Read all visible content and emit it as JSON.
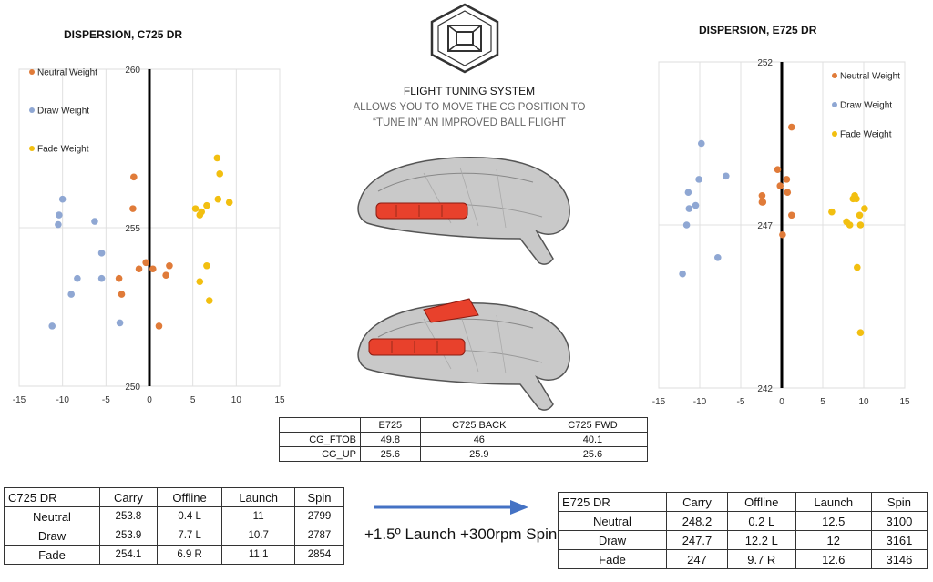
{
  "charts": {
    "left": {
      "title": "DISPERSION, C725 DR",
      "x_ticks": [
        -15,
        -10,
        -5,
        0,
        5,
        10,
        15
      ],
      "y_ticks": [
        260,
        255,
        250
      ],
      "legend": [
        "Neutral Weight",
        "Draw Weight",
        "Fade Weight"
      ]
    },
    "right": {
      "title": "DISPERSION, E725 DR",
      "x_ticks": [
        -15,
        -10,
        -5,
        0,
        5,
        10,
        15
      ],
      "y_ticks": [
        252,
        247,
        242
      ],
      "legend": [
        "Neutral Weight",
        "Draw Weight",
        "Fade Weight"
      ]
    }
  },
  "chart_data": [
    {
      "type": "scatter",
      "title": "DISPERSION, C725 DR",
      "xlim": [
        -15,
        15
      ],
      "ylim": [
        250,
        260
      ],
      "x_ticks": [
        -15,
        -10,
        -5,
        0,
        5,
        10,
        15
      ],
      "y_ticks": [
        250,
        255,
        260
      ],
      "grid": true,
      "legend_position": "top-left",
      "series": [
        {
          "name": "Neutral Weight",
          "color": "#E07B39",
          "x": [
            -1.8,
            -1.9,
            -0.4,
            -1.2,
            0.4,
            2.3,
            1.9,
            -3.5,
            -3.2,
            1.1
          ],
          "y": [
            256.6,
            255.6,
            253.9,
            253.7,
            253.7,
            253.8,
            253.5,
            253.4,
            252.9,
            251.9
          ]
        },
        {
          "name": "Draw Weight",
          "color": "#8FA7D3",
          "x": [
            -10,
            -10.4,
            -10.5,
            -6.3,
            -5.5,
            -8.3,
            -9,
            -5.5,
            -3.4,
            -11.2
          ],
          "y": [
            255.9,
            255.4,
            255.1,
            255.2,
            254.2,
            253.4,
            252.9,
            253.4,
            252.0,
            251.9
          ]
        },
        {
          "name": "Fade Weight",
          "color": "#F2BF10",
          "x": [
            7.8,
            8.1,
            7.9,
            9.2,
            6.6,
            5.3,
            5.8,
            6.0,
            6.6,
            5.8,
            6.9
          ],
          "y": [
            257.2,
            256.7,
            255.9,
            255.8,
            255.7,
            255.6,
            255.4,
            255.5,
            253.8,
            253.3,
            252.7
          ]
        }
      ]
    },
    {
      "type": "scatter",
      "title": "DISPERSION, E725 DR",
      "xlim": [
        -15,
        15
      ],
      "ylim": [
        242,
        252
      ],
      "x_ticks": [
        -15,
        -10,
        -5,
        0,
        5,
        10,
        15
      ],
      "y_ticks": [
        242,
        247,
        252
      ],
      "grid": true,
      "legend_position": "top-right",
      "series": [
        {
          "name": "Neutral Weight",
          "color": "#E07B39",
          "x": [
            1.2,
            -0.5,
            0.6,
            -0.2,
            0.7,
            -2.4,
            -2.4,
            -2.3,
            1.2,
            0.1
          ],
          "y": [
            250.0,
            248.7,
            248.4,
            248.2,
            248.0,
            247.9,
            247.7,
            247.7,
            247.3,
            246.7
          ]
        },
        {
          "name": "Draw Weight",
          "color": "#8FA7D3",
          "x": [
            -9.8,
            -6.8,
            -10.1,
            -11.4,
            -10.5,
            -11.3,
            -11.6,
            -7.8,
            -12.1
          ],
          "y": [
            249.5,
            248.5,
            248.4,
            248.0,
            247.6,
            247.5,
            247.0,
            246.0,
            245.5
          ]
        },
        {
          "name": "Fade Weight",
          "color": "#F2BF10",
          "x": [
            8.7,
            8.9,
            9.1,
            10.1,
            6.1,
            9.5,
            7.9,
            8.3,
            9.6,
            9.2,
            9.6
          ],
          "y": [
            247.8,
            247.9,
            247.8,
            247.5,
            247.4,
            247.3,
            247.1,
            247.0,
            247.0,
            245.7,
            243.7
          ]
        }
      ]
    }
  ],
  "center": {
    "title": "FLIGHT TUNING SYSTEM",
    "line1": "ALLOWS YOU TO MOVE THE CG POSITION TO",
    "line2": "“TUNE IN” AN IMPROVED BALL FLIGHT"
  },
  "cg_table": {
    "headers": [
      "",
      "E725",
      "C725 BACK",
      "C725 FWD"
    ],
    "rows": [
      [
        "CG_FTOB",
        "49.8",
        "46",
        "40.1"
      ],
      [
        "CG_UP",
        "25.6",
        "25.9",
        "25.6"
      ]
    ]
  },
  "left_table": {
    "headers": [
      "C725 DR",
      "Carry",
      "Offline",
      "Launch",
      "Spin"
    ],
    "rows": [
      [
        "Neutral",
        "253.8",
        "0.4 L",
        "11",
        "2799"
      ],
      [
        "Draw",
        "253.9",
        "7.7 L",
        "10.7",
        "2787"
      ],
      [
        "Fade",
        "254.1",
        "6.9 R",
        "11.1",
        "2854"
      ]
    ]
  },
  "right_table": {
    "headers": [
      "E725 DR",
      "Carry",
      "Offline",
      "Launch",
      "Spin"
    ],
    "rows": [
      [
        "Neutral",
        "248.2",
        "0.2 L",
        "12.5",
        "3100"
      ],
      [
        "Draw",
        "247.7",
        "12.2 L",
        "12",
        "3161"
      ],
      [
        "Fade",
        "247",
        "9.7 R",
        "12.6",
        "3146"
      ]
    ]
  },
  "arrow_text": "+1.5º Launch +300rpm Spin",
  "colors": {
    "neutral": "#E07B39",
    "draw": "#8FA7D3",
    "fade": "#F2BF10",
    "arrow": "#4472C4",
    "highlight": "#E8412C"
  },
  "icons": [
    "hexagon-logo-icon",
    "driver-head-icon"
  ]
}
